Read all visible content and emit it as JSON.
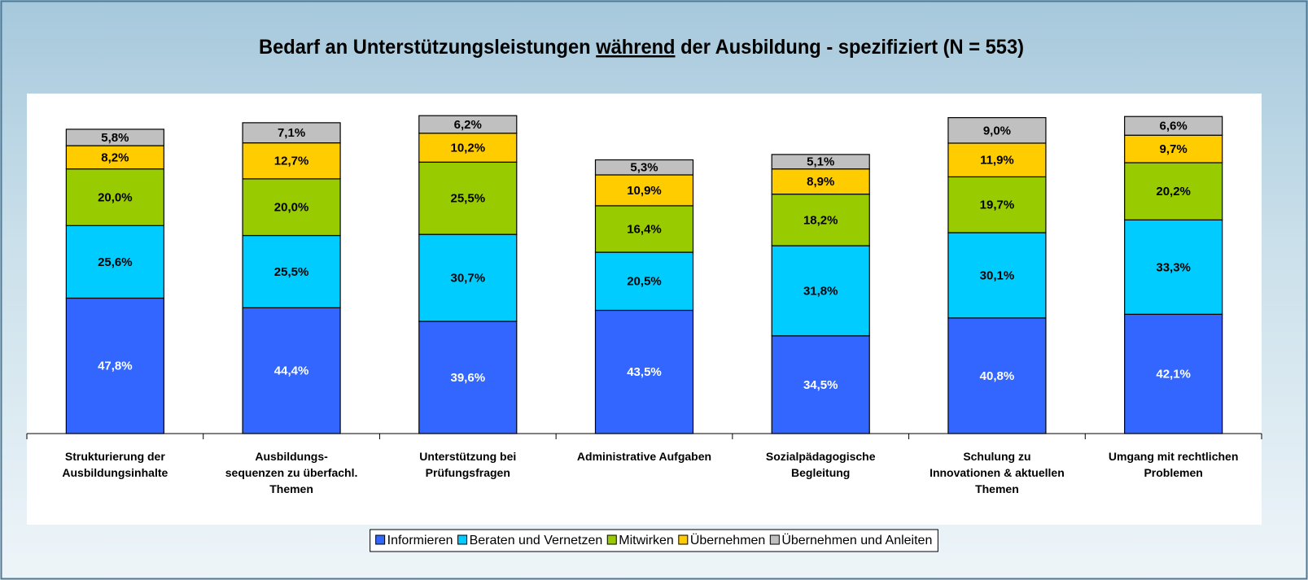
{
  "chart_data": {
    "type": "stacked_bar",
    "title": [
      "Bedarf an Unterstützungsleistungen ",
      "während",
      "  der Ausbildung - spezifiziert (N = 553)"
    ],
    "categories": [
      "Strukturierung der\nAusbildungsinhalte",
      "Ausbildungs-\nsequenzen zu überfachl.\nThemen",
      "Unterstützung bei\nPrüfungsfragen",
      "Administrative Aufgaben",
      "Sozialpädagogische\nBegleitung",
      "Schulung zu\nInnovationen & aktuellen\nThemen",
      "Umgang mit rechtlichen\nProblemen"
    ],
    "ylim": [
      0,
      120
    ],
    "legend": "bottom",
    "series": [
      {
        "name": "Informieren",
        "color": "#3366ff",
        "label_color": "#ffffff",
        "values": [
          47.8,
          44.4,
          39.6,
          43.5,
          34.5,
          40.8,
          42.1
        ],
        "value_labels": [
          "47,8%",
          "44,4%",
          "39,6%",
          "43,5%",
          "34,5%",
          "40,8%",
          "42,1%"
        ]
      },
      {
        "name": "Beraten und Vernetzen",
        "color": "#00ccff",
        "label_color": "#000000",
        "values": [
          25.6,
          25.5,
          30.7,
          20.5,
          31.8,
          30.1,
          33.3
        ],
        "value_labels": [
          "25,6%",
          "25,5%",
          "30,7%",
          "20,5%",
          "31,8%",
          "30,1%",
          "33,3%"
        ]
      },
      {
        "name": "Mitwirken",
        "color": "#99cc00",
        "label_color": "#000000",
        "values": [
          20.0,
          20.0,
          25.5,
          16.4,
          18.2,
          19.7,
          20.2
        ],
        "value_labels": [
          "20,0%",
          "20,0%",
          "25,5%",
          "16,4%",
          "18,2%",
          "19,7%",
          "20,2%"
        ]
      },
      {
        "name": "Übernehmen",
        "color": "#ffcc00",
        "label_color": "#000000",
        "values": [
          8.2,
          12.7,
          10.2,
          10.9,
          8.9,
          11.9,
          9.7
        ],
        "value_labels": [
          "8,2%",
          "12,7%",
          "10,2%",
          "10,9%",
          "8,9%",
          "11,9%",
          "9,7%"
        ]
      },
      {
        "name": "Übernehmen und Anleiten",
        "color": "#c0c0c0",
        "label_color": "#000000",
        "values": [
          5.8,
          7.1,
          6.2,
          5.3,
          5.1,
          9.0,
          6.6
        ],
        "value_labels": [
          "5,8%",
          "7,1%",
          "6,2%",
          "5,3%",
          "5,1%",
          "9,0%",
          "6,6%"
        ]
      }
    ]
  }
}
